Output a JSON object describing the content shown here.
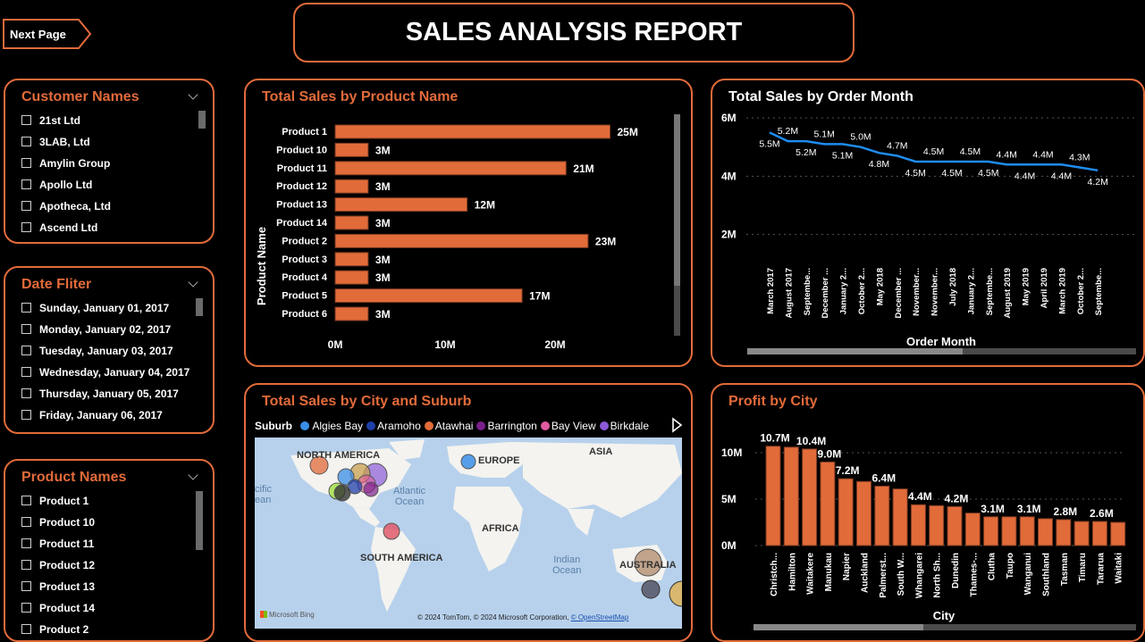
{
  "nav": {
    "next_page": "Next Page"
  },
  "header": {
    "title": "SALES ANALYSIS REPORT"
  },
  "colors": {
    "accent": "#e26b3a",
    "line": "#1f8cf0",
    "bar": "#e26b3a"
  },
  "slicers": {
    "customers": {
      "title": "Customer Names",
      "items": [
        "21st Ltd",
        "3LAB, Ltd",
        "Amylin Group",
        "Apollo Ltd",
        "Apotheca, Ltd",
        "Ascend Ltd"
      ]
    },
    "dates": {
      "title": "Date Fliter",
      "items": [
        "Sunday, January 01, 2017",
        "Monday, January 02, 2017",
        "Tuesday, January 03, 2017",
        "Wednesday, January 04, 2017",
        "Thursday, January 05, 2017",
        "Friday, January 06, 2017"
      ]
    },
    "products": {
      "title": "Product Names",
      "items": [
        "Product 1",
        "Product 10",
        "Product 11",
        "Product 12",
        "Product 13",
        "Product 14",
        "Product 2"
      ]
    }
  },
  "map": {
    "title": "Total Sales by City and Suburb",
    "legend_title": "Suburb",
    "legend": [
      {
        "name": "Algies Bay",
        "color": "#3a8ee6"
      },
      {
        "name": "Aramoho",
        "color": "#1f3fa8"
      },
      {
        "name": "Atawhai",
        "color": "#e26b3a"
      },
      {
        "name": "Barrington",
        "color": "#7a1f8c"
      },
      {
        "name": "Bay View",
        "color": "#e05aa0"
      },
      {
        "name": "Birkdale",
        "color": "#8a5ad8"
      }
    ],
    "labels": {
      "north_america": "NORTH AMERICA",
      "europe": "EUROPE",
      "asia": "ASIA",
      "africa": "AFRICA",
      "south_america": "SOUTH AMERICA",
      "australia": "AUSTRALIA"
    },
    "oceans": {
      "atlantic": "Atlantic\nOcean",
      "indian": "Indian\nOcean",
      "pacific": "cific\nean"
    },
    "brand": "Microsoft Bing",
    "copyright": "© 2024 TomTom, © 2024 Microsoft Corporation, ",
    "osm": "© OpenStreetMap"
  },
  "chart_data": [
    {
      "id": "sales-by-product",
      "type": "bar",
      "orientation": "horizontal",
      "title": "Total Sales by Product Name",
      "ylabel": "Product Name",
      "xlabel": "",
      "categories": [
        "Product 1",
        "Product 10",
        "Product 11",
        "Product 12",
        "Product 13",
        "Product 14",
        "Product 2",
        "Product 3",
        "Product 4",
        "Product 5",
        "Product 6"
      ],
      "values": [
        25,
        3,
        21,
        3,
        12,
        3,
        23,
        3,
        3,
        17,
        3
      ],
      "value_unit": "M",
      "data_labels": [
        "25M",
        "3M",
        "21M",
        "3M",
        "12M",
        "3M",
        "23M",
        "3M",
        "3M",
        "17M",
        "3M"
      ],
      "xticks": [
        "0M",
        "10M",
        "20M"
      ],
      "xlim": [
        0,
        30
      ]
    },
    {
      "id": "sales-by-month",
      "type": "line",
      "title": "Total Sales by Order Month",
      "xlabel": "Order Month",
      "ylabel": "",
      "categories": [
        "March 2017",
        "August 2017",
        "Septembe...",
        "December ...",
        "January 2...",
        "October 2...",
        "May 2018",
        "December ...",
        "November...",
        "November...",
        "July 2018",
        "January 2...",
        "Septembe...",
        "August 2019",
        "May 2019",
        "April 2019",
        "March 2019",
        "October 2...",
        "Septembe..."
      ],
      "values": [
        5.5,
        5.2,
        5.2,
        5.1,
        5.1,
        5.0,
        4.8,
        4.7,
        4.5,
        4.5,
        4.5,
        4.5,
        4.5,
        4.4,
        4.4,
        4.4,
        4.4,
        4.3,
        4.2
      ],
      "data_labels": [
        "5.5M",
        "5.2M",
        "5.2M",
        "5.1M",
        "5.1M",
        "5.0M",
        "4.8M",
        "4.7M",
        "4.5M",
        "4.5M",
        "4.5M",
        "4.5M",
        "4.5M",
        "4.4M",
        "4.4M",
        "4.4M",
        "4.4M",
        "4.3M",
        "4.2M"
      ],
      "yticks": [
        "2M",
        "4M",
        "6M"
      ],
      "ylim": [
        0,
        6
      ],
      "grid": true
    },
    {
      "id": "profit-by-city",
      "type": "bar",
      "title": "Profit by City",
      "xlabel": "City",
      "ylabel": "",
      "categories": [
        "Christch...",
        "Hamilton",
        "Waitakere",
        "Manukau",
        "Napier",
        "Auckland",
        "Palmerst...",
        "South W...",
        "Whangarei",
        "North Sh...",
        "Dunedin",
        "Thames-...",
        "Clutha",
        "Taupo",
        "Wanganui",
        "Southland",
        "Tasman",
        "Timaru",
        "Tararua",
        "Waitaki"
      ],
      "values": [
        10.7,
        10.6,
        10.4,
        9.0,
        7.2,
        6.9,
        6.4,
        6.1,
        4.4,
        4.3,
        4.2,
        3.5,
        3.1,
        3.1,
        3.1,
        2.9,
        2.8,
        2.6,
        2.6,
        2.5
      ],
      "data_labels": [
        "10.7M",
        "",
        "10.4M",
        "9.0M",
        "7.2M",
        "",
        "6.4M",
        "",
        "4.4M",
        "",
        "4.2M",
        "",
        "3.1M",
        "",
        "3.1M",
        "",
        "2.8M",
        "",
        "2.6M",
        ""
      ],
      "yticks": [
        "0M",
        "5M",
        "10M"
      ],
      "ylim": [
        0,
        12
      ],
      "grid": true
    }
  ]
}
